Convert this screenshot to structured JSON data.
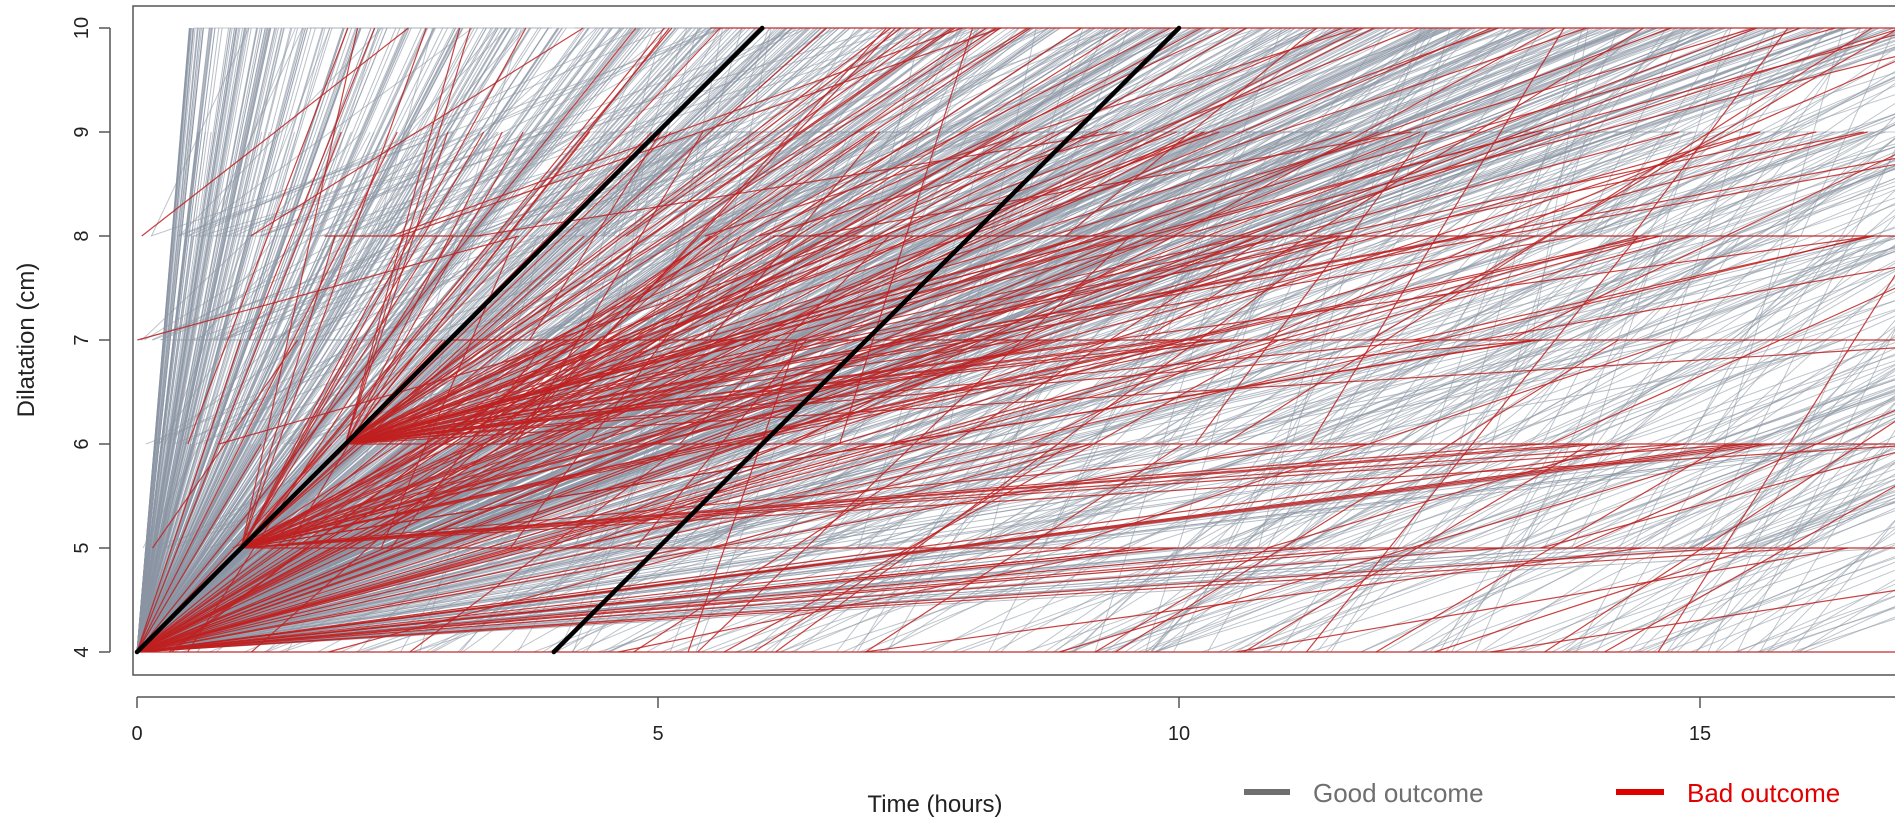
{
  "chart_data": {
    "type": "line",
    "title": "",
    "xlabel": "Time (hours)",
    "ylabel": "Dilatation (cm)",
    "xlim": [
      0,
      17.5
    ],
    "ylim": [
      4,
      10
    ],
    "x_ticks": [
      "0",
      "5",
      "10",
      "15"
    ],
    "y_ticks": [
      "4",
      "5",
      "6",
      "7",
      "8",
      "9",
      "10"
    ],
    "grid": false,
    "legend": {
      "placement": "bottom-right",
      "items": [
        {
          "label": "Good outcome",
          "color": "#6f6f6f"
        },
        {
          "label": "Bad outcome",
          "color": "#e00000"
        }
      ]
    },
    "series": [
      {
        "name": "Good outcome",
        "color": "#8a95a3"
      },
      {
        "name": "Bad outcome",
        "color": "#c02020"
      }
    ],
    "reference_lines": [
      {
        "points": [
          [
            0,
            4
          ],
          [
            6,
            10
          ]
        ],
        "color": "#000000"
      },
      {
        "points": [
          [
            4,
            4
          ],
          [
            10,
            10
          ]
        ],
        "color": "#000000"
      }
    ]
  }
}
